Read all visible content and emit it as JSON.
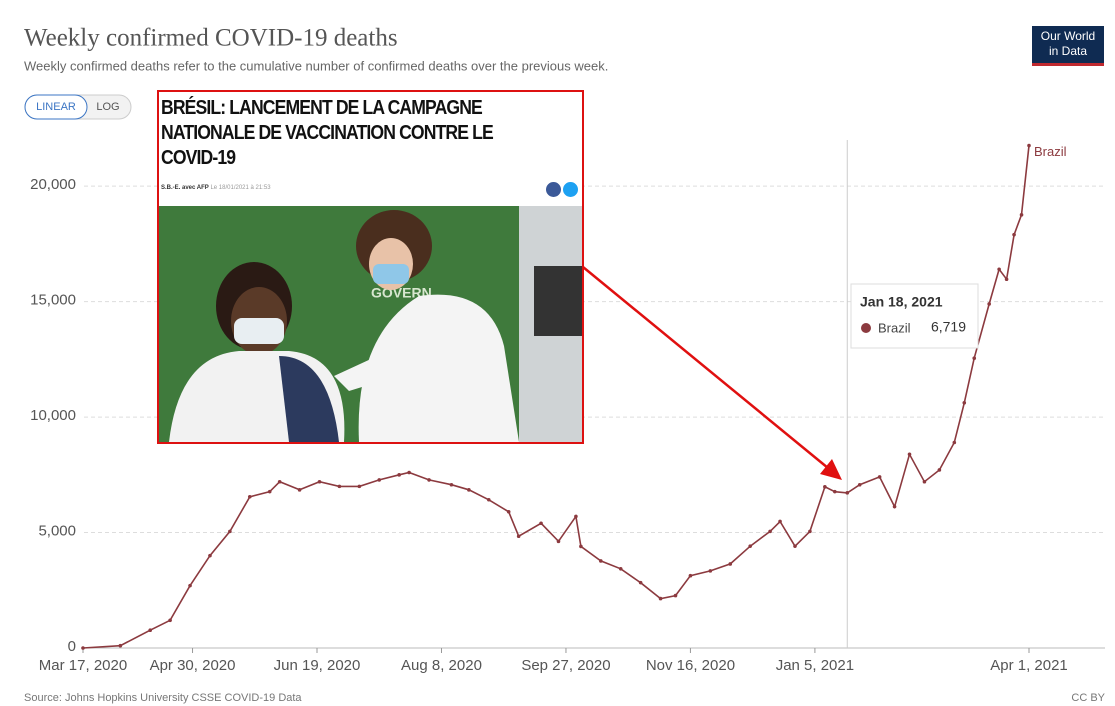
{
  "chart_data": {
    "type": "line",
    "title": "Weekly confirmed COVID-19 deaths",
    "subtitle": "Weekly confirmed deaths refer to the cumulative number of confirmed deaths over the previous week.",
    "scale_buttons": [
      "LINEAR",
      "LOG"
    ],
    "logo": [
      "Our World",
      "in Data"
    ],
    "source": "Source: Johns Hopkins University CSSE COVID-19 Data",
    "license": "CC BY",
    "grid": true,
    "log_scale": false,
    "xlim": [
      "2020-03-17",
      "2021-04-01"
    ],
    "xticks": [
      {
        "value": "2020-03-17",
        "label": "Mar 17, 2020"
      },
      {
        "value": "2020-04-30",
        "label": "Apr 30, 2020"
      },
      {
        "value": "2020-06-19",
        "label": "Jun 19, 2020"
      },
      {
        "value": "2020-08-08",
        "label": "Aug 8, 2020"
      },
      {
        "value": "2020-09-27",
        "label": "Sep 27, 2020"
      },
      {
        "value": "2020-11-16",
        "label": "Nov 16, 2020"
      },
      {
        "value": "2021-01-05",
        "label": "Jan 5, 2021"
      },
      {
        "value": "2021-04-01",
        "label": "Apr 1, 2021"
      }
    ],
    "ylim": [
      0,
      22000
    ],
    "yticks": [
      0,
      {
        "value": 5000,
        "label": "5,000"
      },
      {
        "value": 10000,
        "label": "10,000"
      },
      {
        "value": 15000,
        "label": "15,000"
      },
      {
        "value": 20000,
        "label": "20,000"
      }
    ],
    "series": [
      {
        "name": "Brazil",
        "color": "#8c3a3f",
        "x": [
          "2020-03-17",
          "2020-04-01",
          "2020-04-13",
          "2020-04-21",
          "2020-04-29",
          "2020-05-07",
          "2020-05-15",
          "2020-05-23",
          "2020-05-31",
          "2020-06-04",
          "2020-06-12",
          "2020-06-20",
          "2020-06-28",
          "2020-07-06",
          "2020-07-14",
          "2020-07-22",
          "2020-07-26",
          "2020-08-03",
          "2020-08-12",
          "2020-08-19",
          "2020-08-27",
          "2020-09-04",
          "2020-09-08",
          "2020-09-17",
          "2020-09-24",
          "2020-10-01",
          "2020-10-03",
          "2020-10-11",
          "2020-10-19",
          "2020-10-27",
          "2020-11-04",
          "2020-11-10",
          "2020-11-16",
          "2020-11-24",
          "2020-12-02",
          "2020-12-10",
          "2020-12-18",
          "2020-12-22",
          "2020-12-28",
          "2021-01-03",
          "2021-01-09",
          "2021-01-13",
          "2021-01-18",
          "2021-01-23",
          "2021-01-31",
          "2021-02-06",
          "2021-02-12",
          "2021-02-18",
          "2021-02-24",
          "2021-03-02",
          "2021-03-06",
          "2021-03-10",
          "2021-03-16",
          "2021-03-20",
          "2021-03-23",
          "2021-03-26",
          "2021-03-29",
          "2021-04-01"
        ],
        "values": [
          0,
          100,
          770,
          1200,
          2700,
          4000,
          5050,
          6550,
          6770,
          7200,
          6850,
          7200,
          7000,
          7000,
          7280,
          7500,
          7600,
          7280,
          7070,
          6850,
          6420,
          5900,
          4840,
          5400,
          4620,
          5700,
          4400,
          3770,
          3430,
          2830,
          2140,
          2270,
          3130,
          3340,
          3640,
          4410,
          5050,
          5480,
          4410,
          5050,
          6980,
          6770,
          6719,
          7070,
          7410,
          6120,
          8390,
          7200,
          7710,
          8900,
          10620,
          12550,
          14900,
          16400,
          15970,
          17900,
          18760,
          21760
        ]
      }
    ],
    "tooltip": {
      "x": "2021-01-18",
      "title": "Jan 18, 2021",
      "value": 6719,
      "label": "6,719"
    },
    "inset": {
      "headline": [
        "BRÉSIL: LANCEMENT DE LA CAMPAGNE",
        "NATIONALE DE VACCINATION CONTRE LE",
        "COVID-19"
      ],
      "byline": "S.B.-E. avec AFP",
      "date": "Le 18/01/2021 à 21:53",
      "photo_sign": "GOVERN"
    }
  }
}
